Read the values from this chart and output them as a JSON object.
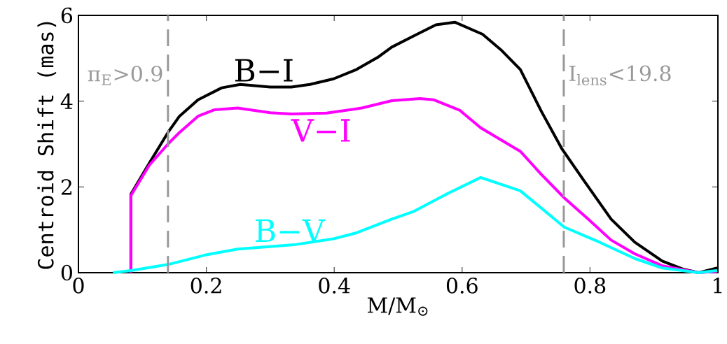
{
  "chart_data": {
    "type": "line",
    "xlabel": "M/M$_{⊙}$",
    "ylabel": "Centroid Shift (mas)",
    "xlim": [
      0,
      1
    ],
    "ylim": [
      0,
      6
    ],
    "xticks": [
      0,
      0.2,
      0.4,
      0.6,
      0.8,
      1
    ],
    "yticks": [
      0,
      2,
      4,
      6
    ],
    "grid": false,
    "marker": "none",
    "line_style": "solid",
    "series": [
      {
        "name": "B−I",
        "color": "#000000",
        "x": [
          0.082,
          0.082,
          0.111,
          0.14,
          0.158,
          0.187,
          0.224,
          0.253,
          0.3,
          0.333,
          0.362,
          0.399,
          0.435,
          0.468,
          0.49,
          0.523,
          0.559,
          0.589,
          0.632,
          0.662,
          0.691,
          0.724,
          0.756,
          0.789,
          0.833,
          0.87,
          0.913,
          0.946,
          0.97,
          0.999
        ],
        "values": [
          0,
          1.83,
          2.56,
          3.27,
          3.65,
          4.03,
          4.31,
          4.39,
          4.33,
          4.33,
          4.39,
          4.52,
          4.74,
          5.02,
          5.26,
          5.51,
          5.78,
          5.84,
          5.56,
          5.18,
          4.74,
          3.76,
          2.89,
          2.18,
          1.25,
          0.71,
          0.27,
          0.08,
          0,
          0.11
        ]
      },
      {
        "name": "V−I",
        "color": "#ff00ff",
        "x": [
          0.082,
          0.082,
          0.111,
          0.14,
          0.158,
          0.187,
          0.213,
          0.249,
          0.3,
          0.333,
          0.388,
          0.443,
          0.49,
          0.534,
          0.556,
          0.596,
          0.629,
          0.691,
          0.724,
          0.76,
          0.797,
          0.833,
          0.87,
          0.913,
          0.97,
          0.999
        ],
        "values": [
          0,
          1.8,
          2.51,
          3.0,
          3.27,
          3.65,
          3.8,
          3.84,
          3.73,
          3.7,
          3.72,
          3.84,
          4.01,
          4.06,
          4.03,
          3.79,
          3.38,
          2.83,
          2.29,
          1.74,
          1.25,
          0.76,
          0.44,
          0.16,
          0,
          0.03
        ]
      },
      {
        "name": "B−V",
        "color": "#00ffff",
        "x": [
          0.054,
          0.082,
          0.14,
          0.198,
          0.249,
          0.337,
          0.399,
          0.435,
          0.49,
          0.523,
          0.578,
          0.629,
          0.691,
          0.76,
          0.815,
          0.87,
          0.913,
          0.97,
          0.999
        ],
        "values": [
          0,
          0.05,
          0.19,
          0.41,
          0.55,
          0.65,
          0.79,
          0.93,
          1.25,
          1.42,
          1.85,
          2.22,
          1.91,
          1.06,
          0.71,
          0.33,
          0.11,
          0,
          0.05
        ]
      }
    ],
    "ref_lines": [
      {
        "axis": "x",
        "value": 0.14,
        "label": "π$_{E}$>0.9",
        "color": "#999999",
        "line_style": "dashed"
      },
      {
        "axis": "x",
        "value": 0.759,
        "label": "I$_{lens}$<19.8",
        "color": "#999999",
        "line_style": "dashed"
      }
    ]
  }
}
